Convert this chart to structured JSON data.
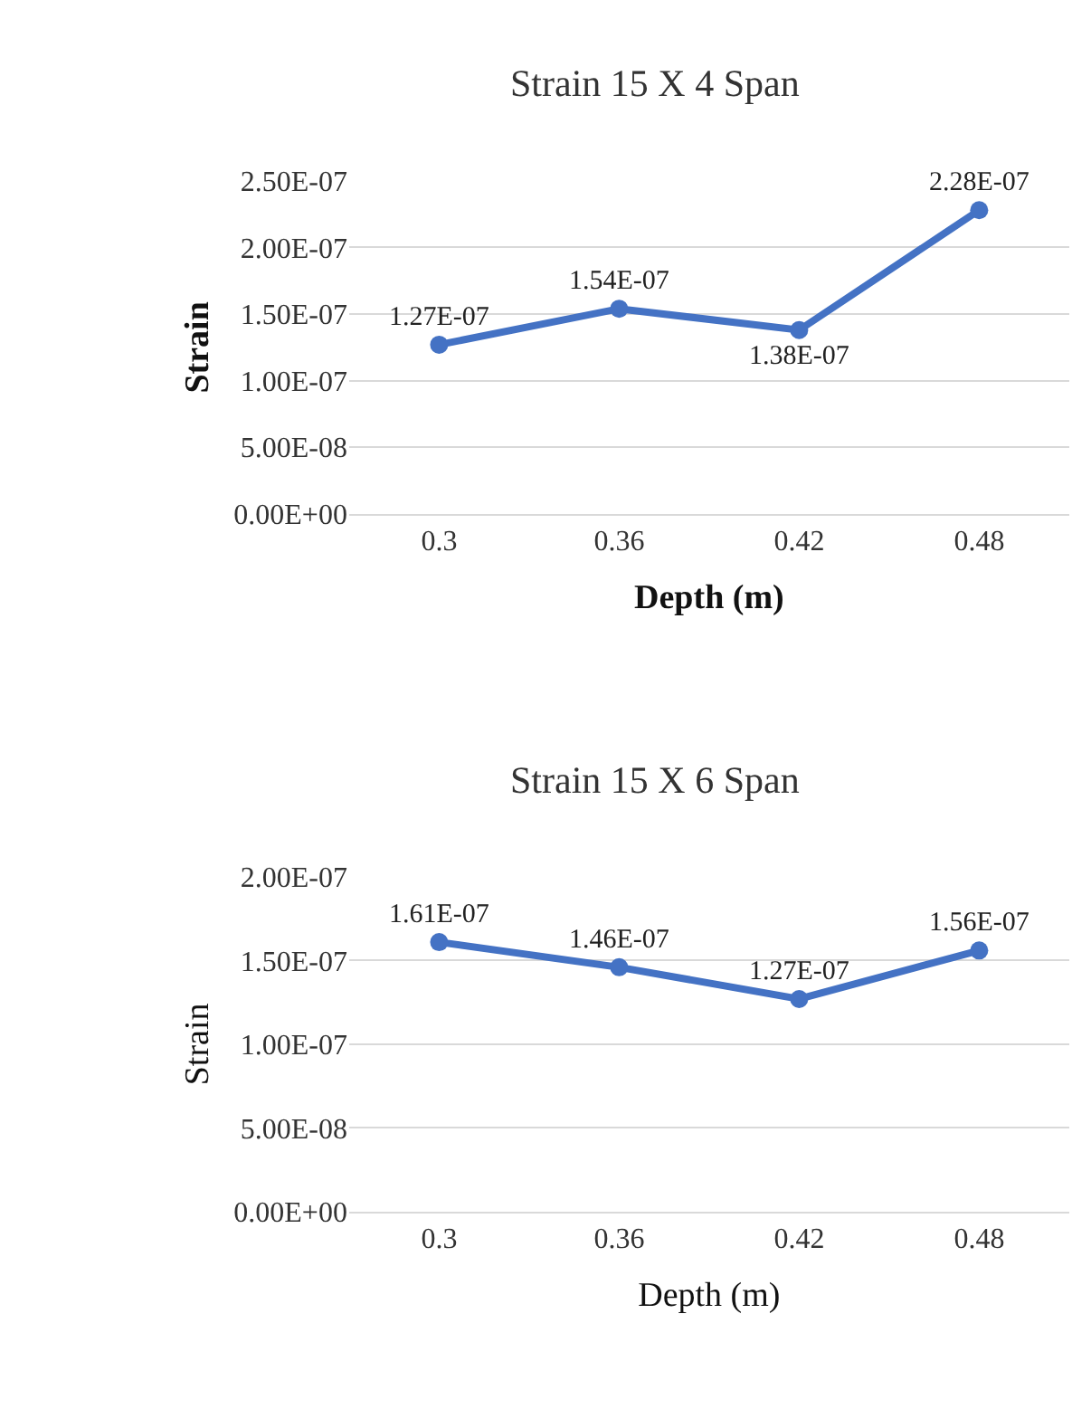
{
  "chart_data": [
    {
      "type": "line",
      "title": "Strain 15 X 4 Span",
      "xlabel": "Depth (m)",
      "ylabel": "Strain",
      "categories": [
        "0.3",
        "0.36",
        "0.42",
        "0.48"
      ],
      "series": [
        {
          "color": "#4472c4",
          "values": [
            1.27e-07,
            1.54e-07,
            1.38e-07,
            2.28e-07
          ],
          "value_labels": [
            "1.27E-07",
            "1.54E-07",
            "1.38E-07",
            "2.28E-07"
          ]
        }
      ],
      "ylim": [
        0,
        2.5e-07
      ],
      "yticks": [
        {
          "value": 0,
          "label": "0.00E+00"
        },
        {
          "value": 5e-08,
          "label": "5.00E-08"
        },
        {
          "value": 1e-07,
          "label": "1.00E-07"
        },
        {
          "value": 1.5e-07,
          "label": "1.50E-07"
        },
        {
          "value": 2e-07,
          "label": "2.00E-07"
        },
        {
          "value": 2.5e-07,
          "label": "2.50E-07"
        }
      ],
      "grid": "y",
      "marker": "circle",
      "line_style": "solid"
    },
    {
      "type": "line",
      "title": "Strain 15 X 6 Span",
      "xlabel": "Depth (m)",
      "ylabel": "Strain",
      "categories": [
        "0.3",
        "0.36",
        "0.42",
        "0.48"
      ],
      "series": [
        {
          "color": "#4472c4",
          "values": [
            1.61e-07,
            1.46e-07,
            1.27e-07,
            1.56e-07
          ],
          "value_labels": [
            "1.61E-07",
            "1.46E-07",
            "1.27E-07",
            "1.56E-07"
          ]
        }
      ],
      "ylim": [
        0,
        2e-07
      ],
      "yticks": [
        {
          "value": 0,
          "label": "0.00E+00"
        },
        {
          "value": 5e-08,
          "label": "5.00E-08"
        },
        {
          "value": 1e-07,
          "label": "1.00E-07"
        },
        {
          "value": 1.5e-07,
          "label": "1.50E-07"
        },
        {
          "value": 2e-07,
          "label": "2.00E-07"
        }
      ],
      "grid": "y",
      "marker": "circle",
      "line_style": "solid"
    }
  ]
}
